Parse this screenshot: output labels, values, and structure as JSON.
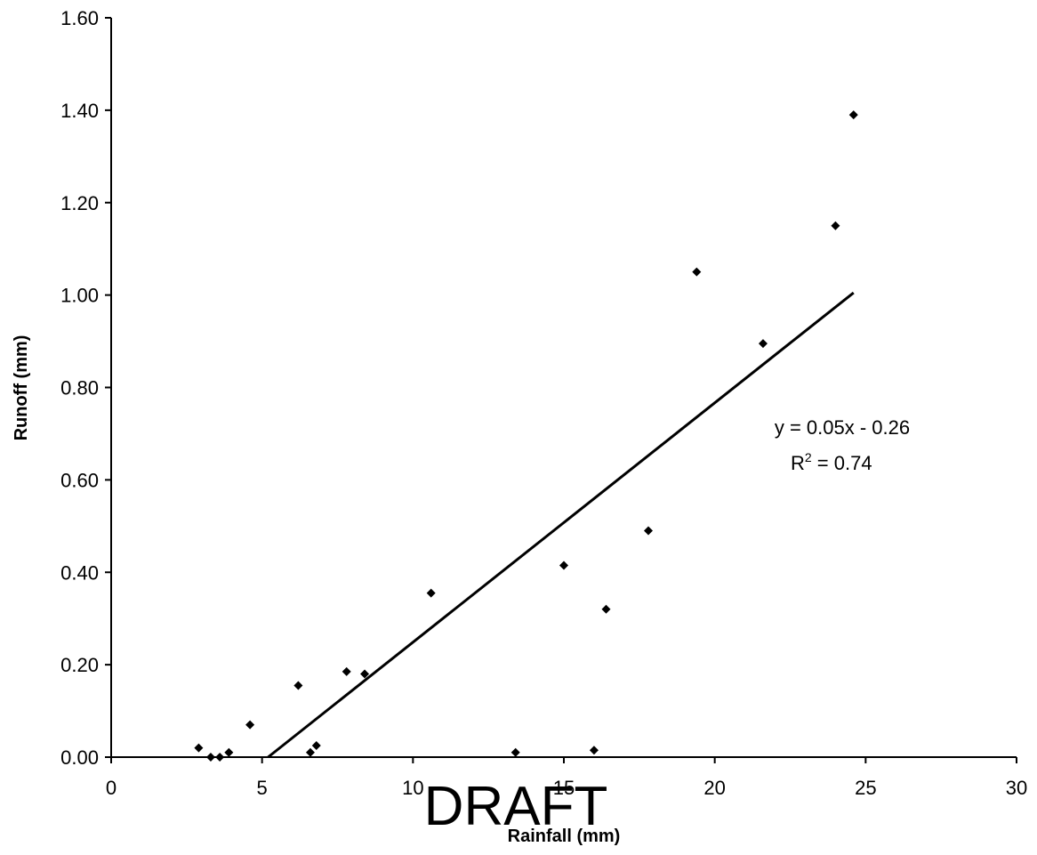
{
  "chart_data": {
    "type": "scatter",
    "title": "",
    "xlabel": "Rainfall (mm)",
    "ylabel": "Runoff (mm)",
    "xlim": [
      0,
      30
    ],
    "ylim": [
      0,
      1.6
    ],
    "x_ticks": [
      0,
      5,
      10,
      15,
      20,
      25,
      30
    ],
    "x_tick_labels": [
      "0",
      "5",
      "10",
      "15",
      "20",
      "25",
      "30"
    ],
    "y_ticks": [
      0,
      0.2,
      0.4,
      0.6,
      0.8,
      1.0,
      1.2,
      1.4,
      1.6
    ],
    "y_tick_labels": [
      "0.00",
      "0.20",
      "0.40",
      "0.60",
      "0.80",
      "1.00",
      "1.20",
      "1.40",
      "1.60"
    ],
    "grid": false,
    "legend": "none",
    "series": [
      {
        "points": [
          {
            "x": 2.9,
            "y": 0.02
          },
          {
            "x": 3.3,
            "y": 0.0
          },
          {
            "x": 3.6,
            "y": 0.0
          },
          {
            "x": 3.9,
            "y": 0.01
          },
          {
            "x": 4.6,
            "y": 0.07
          },
          {
            "x": 6.2,
            "y": 0.155
          },
          {
            "x": 6.6,
            "y": 0.01
          },
          {
            "x": 6.8,
            "y": 0.025
          },
          {
            "x": 7.8,
            "y": 0.185
          },
          {
            "x": 8.4,
            "y": 0.18
          },
          {
            "x": 10.6,
            "y": 0.355
          },
          {
            "x": 13.4,
            "y": 0.01
          },
          {
            "x": 15.0,
            "y": 0.415
          },
          {
            "x": 16.0,
            "y": 0.015
          },
          {
            "x": 16.4,
            "y": 0.32
          },
          {
            "x": 17.8,
            "y": 0.49
          },
          {
            "x": 19.4,
            "y": 1.05
          },
          {
            "x": 21.6,
            "y": 0.895
          },
          {
            "x": 24.0,
            "y": 1.15
          },
          {
            "x": 24.6,
            "y": 1.39
          }
        ]
      }
    ],
    "trendline": {
      "type": "linear",
      "x_range": [
        5.2,
        24.6
      ],
      "y_range": [
        0.0,
        1.005
      ],
      "equation": "y = 0.05x - 0.26",
      "r2_prefix": "R",
      "r2_superscript": "2",
      "r2_value": " = 0.74"
    },
    "watermark": "DRAFT",
    "colors": {
      "marker": "#000000",
      "axis": "#000000",
      "trendline": "#000000"
    }
  }
}
